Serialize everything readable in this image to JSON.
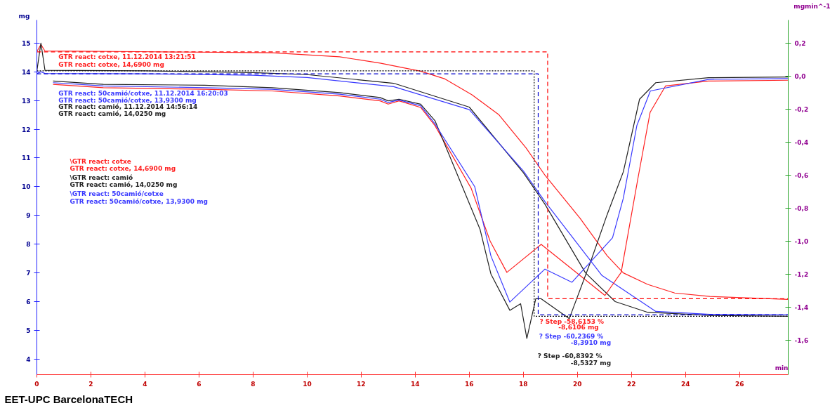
{
  "chart_data": {
    "type": "line",
    "xlabel": "min",
    "ylabel": "mg",
    "y2label": "mgmin^-1",
    "xlim": [
      0,
      27.8
    ],
    "xticks": [
      0,
      2,
      4,
      6,
      8,
      10,
      12,
      14,
      16,
      18,
      20,
      22,
      24,
      26
    ],
    "ylim": [
      3.46,
      15.8
    ],
    "yticks": [
      4,
      5,
      6,
      7,
      8,
      9,
      10,
      11,
      12,
      13,
      14,
      15
    ],
    "y2lim": [
      -1.81,
      0.34
    ],
    "y2ticks": [
      {
        "value": 0.2,
        "label": "0,2"
      },
      {
        "value": 0.0,
        "label": "0,0"
      },
      {
        "value": -0.2,
        "label": "-0,2"
      },
      {
        "value": -0.4,
        "label": "-0,4"
      },
      {
        "value": -0.6,
        "label": "-0,6"
      },
      {
        "value": -0.8,
        "label": "-0,8"
      },
      {
        "value": -1.0,
        "label": "-1,0"
      },
      {
        "value": -1.2,
        "label": "-1,2"
      },
      {
        "value": -1.4,
        "label": "-1,4"
      },
      {
        "value": -1.6,
        "label": "-1,6"
      }
    ],
    "grid": false,
    "series": [
      {
        "color": "#ff2020",
        "x": [
          0,
          0.15,
          0.3,
          3.7,
          8.7,
          11.2,
          12.7,
          14.2,
          15.1,
          16.1,
          17.1,
          18.1,
          18.8,
          20.1,
          21.1,
          21.7,
          22.6,
          23.6,
          24.9,
          27.8
        ],
        "values": [
          14.7,
          14.95,
          14.72,
          14.7,
          14.66,
          14.52,
          14.3,
          14.02,
          13.75,
          13.2,
          12.5,
          11.35,
          10.4,
          8.9,
          7.6,
          7.0,
          6.6,
          6.3,
          6.18,
          6.08
        ]
      },
      {
        "color": "#202020",
        "x": [
          0,
          0.15,
          0.3,
          4,
          8,
          10,
          13.2,
          16.0,
          18.0,
          18.8,
          20.3,
          21.4,
          22.6,
          24.9,
          27.8
        ],
        "values": [
          14.02,
          15.0,
          14.05,
          14.03,
          13.97,
          13.9,
          13.6,
          12.77,
          10.49,
          9.39,
          7.0,
          6.0,
          5.63,
          5.52,
          5.49
        ]
      },
      {
        "color": "#3a3aff",
        "x": [
          0,
          0.15,
          0.3,
          4,
          8,
          10,
          13.2,
          16.0,
          18.0,
          18.8,
          20.9,
          22.9,
          24.9,
          27.8
        ],
        "values": [
          13.93,
          14.0,
          13.94,
          13.93,
          13.88,
          13.8,
          13.48,
          12.68,
          10.55,
          9.48,
          6.92,
          5.66,
          5.56,
          5.54
        ]
      },
      {
        "color": "#ff2020",
        "axis": "y2",
        "x": [
          0.6,
          2.46,
          6.2,
          8.7,
          11.2,
          12.7,
          13.0,
          13.4,
          14.2,
          14.73,
          16.07,
          16.77,
          17.39,
          18.66,
          21.02,
          21.62,
          22.24,
          22.69,
          23.26,
          24.85,
          27.8
        ],
        "values": [
          -0.05,
          -0.07,
          -0.08,
          -0.09,
          -0.12,
          -0.15,
          -0.17,
          -0.15,
          -0.19,
          -0.3,
          -0.68,
          -1.0,
          -1.19,
          -1.02,
          -1.33,
          -1.19,
          -0.62,
          -0.22,
          -0.06,
          -0.03,
          -0.025
        ]
      },
      {
        "color": "#202020",
        "axis": "y2",
        "x": [
          0.6,
          2.46,
          6.2,
          8.7,
          11.2,
          12.7,
          13.0,
          13.4,
          14.2,
          14.73,
          16.4,
          16.8,
          17.5,
          17.9,
          18.13,
          18.46,
          18.66,
          19.7,
          20.5,
          21.1,
          21.7,
          22.3,
          22.9,
          24.85,
          27.8
        ],
        "values": [
          -0.03,
          -0.05,
          -0.055,
          -0.07,
          -0.1,
          -0.13,
          -0.15,
          -0.14,
          -0.17,
          -0.27,
          -0.93,
          -1.2,
          -1.42,
          -1.38,
          -1.59,
          -1.35,
          -1.35,
          -1.47,
          -1.12,
          -0.84,
          -0.58,
          -0.14,
          -0.04,
          -0.01,
          -0.005
        ]
      },
      {
        "color": "#3a3aff",
        "axis": "y2",
        "x": [
          0.6,
          2.46,
          6.2,
          8.7,
          11.2,
          12.7,
          13.0,
          13.4,
          14.2,
          14.73,
          16.2,
          16.8,
          17.5,
          18.8,
          19.8,
          21.3,
          21.7,
          22.2,
          22.7,
          24.85,
          27.8
        ],
        "values": [
          -0.04,
          -0.06,
          -0.07,
          -0.08,
          -0.11,
          -0.14,
          -0.16,
          -0.145,
          -0.18,
          -0.29,
          -0.67,
          -1.09,
          -1.37,
          -1.17,
          -1.25,
          -0.98,
          -0.74,
          -0.3,
          -0.09,
          -0.02,
          -0.015
        ]
      },
      {
        "color": "#ff0000",
        "line_style": "dashed",
        "x": [
          0,
          18.9,
          18.9,
          27.8
        ],
        "values": [
          14.69,
          14.69,
          6.1,
          6.1
        ]
      },
      {
        "color": "#0000cc",
        "line_style": "dashed",
        "x": [
          0,
          18.55,
          18.55,
          27.8
        ],
        "values": [
          13.93,
          13.93,
          5.54,
          5.54
        ]
      },
      {
        "color": "#000000",
        "line_style": "dotted",
        "x": [
          0,
          18.4,
          18.4,
          18.4,
          27.8
        ],
        "values": [
          14.03,
          14.03,
          12.9,
          5.49,
          5.49
        ]
      }
    ],
    "annotations": [
      "GTR react: cotxe, 11.12.2014 13:21:51",
      "GTR react: cotxe, 14,6900 mg",
      "GTR react: 50camió/cotxe, 11.12.2014 16:20:03",
      "GTR react: 50camió/cotxe, 13,9300 mg",
      "GTR react: camió, 11.12.2014 14:56:14",
      "GTR react: camió, 14,0250 mg",
      "\\GTR react: cotxe",
      "GTR react: cotxe, 14,6900 mg",
      "\\GTR react: camió",
      "GTR react: camió, 14,0250 mg",
      "\\GTR react: 50camió/cotxe",
      "GTR react: 50camió/cotxe, 13,9300 mg",
      "? Step -58,6153 %",
      "-8,6106 mg",
      "? Step -60,2369 %",
      "-8,3910 mg",
      "? Step -60,8392 %",
      "-8,5327 mg",
      "EET-UPC BarcelonaTECH"
    ]
  }
}
